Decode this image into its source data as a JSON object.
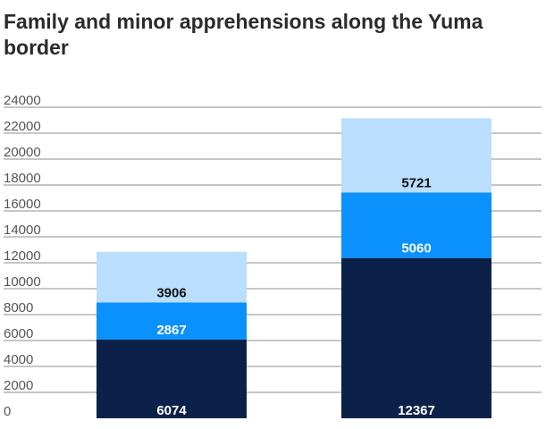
{
  "chart_data": {
    "type": "bar",
    "stacked": true,
    "title": "Family and minor apprehensions along the Yuma border",
    "xlabel": "",
    "ylabel": "",
    "ylim": [
      0,
      24000
    ],
    "yticks": [
      0,
      2000,
      4000,
      6000,
      8000,
      10000,
      12000,
      14000,
      16000,
      18000,
      20000,
      22000,
      24000
    ],
    "categories": [
      "",
      ""
    ],
    "series": [
      {
        "name": "",
        "values": [
          6074,
          12367
        ],
        "color": "#0b2149",
        "label_color": "#ffffff"
      },
      {
        "name": "",
        "values": [
          2867,
          5060
        ],
        "color": "#0a91fb",
        "label_color": "#ffffff"
      },
      {
        "name": "",
        "values": [
          3906,
          5721
        ],
        "color": "#badefd",
        "label_color": "#111111"
      }
    ],
    "grid": true
  }
}
